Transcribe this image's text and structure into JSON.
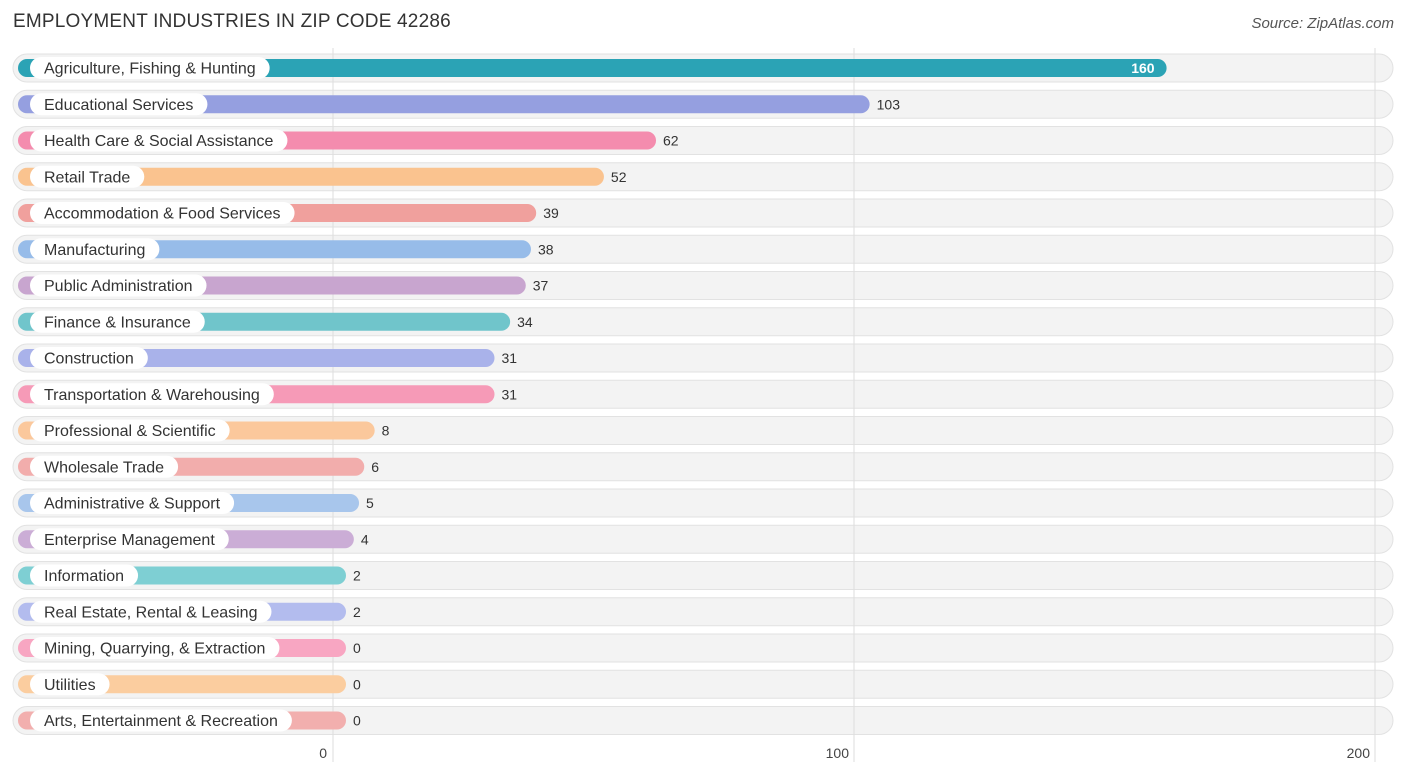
{
  "title": "EMPLOYMENT INDUSTRIES IN ZIP CODE 42286",
  "source": "Source: ZipAtlas.com",
  "chart_data": {
    "type": "bar",
    "orientation": "horizontal",
    "title": "EMPLOYMENT INDUSTRIES IN ZIP CODE 42286",
    "xlabel": "",
    "ylabel": "",
    "xlim": [
      0,
      200
    ],
    "xticks": [
      0,
      100,
      200
    ],
    "xtick_labels": [
      "0",
      "100",
      "200"
    ],
    "grid": true,
    "categories": [
      "Agriculture, Fishing & Hunting",
      "Educational Services",
      "Health Care & Social Assistance",
      "Retail Trade",
      "Accommodation & Food Services",
      "Manufacturing",
      "Public Administration",
      "Finance & Insurance",
      "Construction",
      "Transportation & Warehousing",
      "Professional & Scientific",
      "Wholesale Trade",
      "Administrative & Support",
      "Enterprise Management",
      "Information",
      "Real Estate, Rental & Leasing",
      "Mining, Quarrying, & Extraction",
      "Utilities",
      "Arts, Entertainment & Recreation"
    ],
    "values": [
      160,
      103,
      62,
      52,
      39,
      38,
      37,
      34,
      31,
      31,
      8,
      6,
      5,
      4,
      2,
      2,
      0,
      0,
      0
    ],
    "value_labels": [
      "160",
      "103",
      "62",
      "52",
      "39",
      "38",
      "37",
      "34",
      "31",
      "31",
      "8",
      "6",
      "5",
      "4",
      "2",
      "2",
      "0",
      "0",
      "0"
    ],
    "colors": [
      "#2ba3b5",
      "#959fe0",
      "#f48cae",
      "#fac38f",
      "#f0a09d",
      "#97bce9",
      "#c8a5cf",
      "#70c5cb",
      "#a9b2ea",
      "#f69ab7",
      "#fbc89c",
      "#f2adac",
      "#a8c6ec",
      "#cbadd6",
      "#7ecfd3",
      "#b3bcee",
      "#f8a6c2",
      "#fbcd9f",
      "#f2afae"
    ]
  }
}
